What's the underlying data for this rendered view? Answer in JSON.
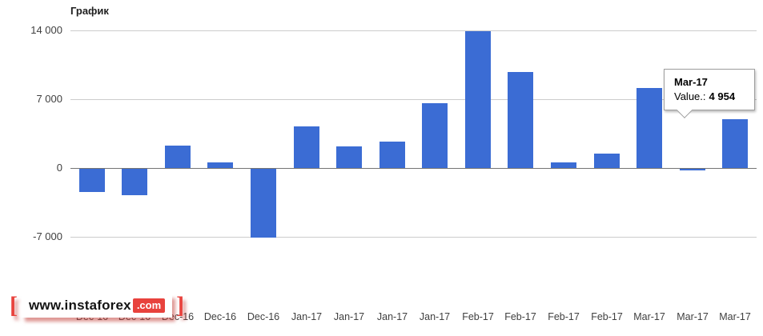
{
  "title": "График",
  "tooltip": {
    "label": "Mar-17",
    "value_prefix": "Value.:",
    "value": "4 954"
  },
  "watermark": {
    "bracket_left": "[",
    "bracket_right": "]",
    "text": "www.instaforex",
    "suffix": ".com"
  },
  "chart_data": {
    "type": "bar",
    "title": "График",
    "categories": [
      "Dec-16",
      "Dec-16",
      "Dec-16",
      "Dec-16",
      "Dec-16",
      "Jan-17",
      "Jan-17",
      "Jan-17",
      "Jan-17",
      "Feb-17",
      "Feb-17",
      "Feb-17",
      "Feb-17",
      "Mar-17",
      "Mar-17",
      "Mar-17"
    ],
    "values": [
      -2400,
      -2700,
      2300,
      600,
      -7000,
      4200,
      2200,
      2700,
      6600,
      13900,
      9800,
      600,
      1500,
      8100,
      -150,
      4954
    ],
    "highlighted_point": {
      "category": "Mar-17",
      "value": 4954
    },
    "ylim": [
      -14000,
      14000
    ],
    "yticks": [
      14000,
      7000,
      0,
      -7000
    ],
    "ytick_labels": [
      "14 000",
      "7 000",
      "0",
      "-7 000"
    ],
    "xlabel": "",
    "ylabel": "",
    "grid": true,
    "legend": "none",
    "bar_color": "#3b6cd4",
    "grid_color": "#cccccc",
    "zero_line_color": "#757575",
    "label_color": "#404040",
    "accent_red": "#e8423d"
  }
}
